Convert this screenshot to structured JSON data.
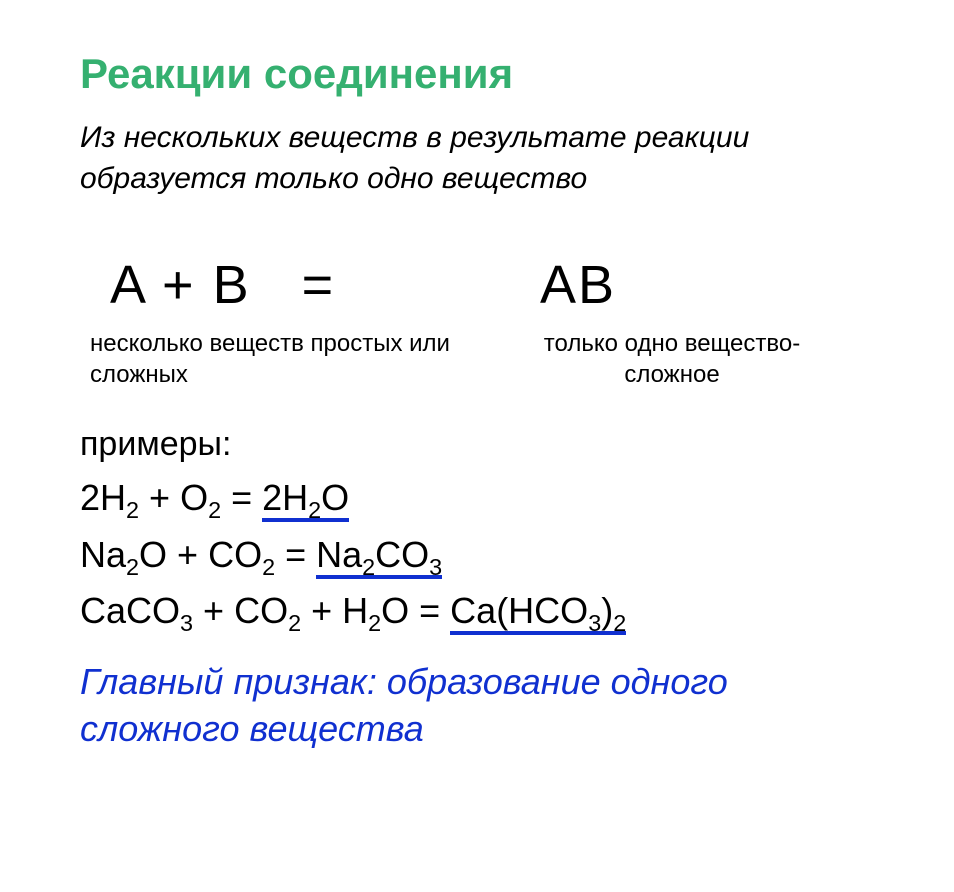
{
  "colors": {
    "title": "#35b070",
    "subtitle": "#000000",
    "body": "#000000",
    "underline": "#1030d0",
    "footer": "#1030d0"
  },
  "title": "Реакции соединения",
  "subtitle": "Из нескольких веществ в результате реакции образуется только одно вещество",
  "equation": {
    "left_expr": "A  +  B",
    "equals": "=",
    "right_expr": "AB",
    "left_caption": "несколько веществ простых или сложных",
    "right_caption": "только одно вещество- сложное"
  },
  "examples_label": "примеры:",
  "reactions": [
    {
      "reactants": "2H₂ + O₂ = ",
      "product": "2H₂O"
    },
    {
      "reactants": "Na₂O + CO₂ = ",
      "product": "Na₂CO₃"
    },
    {
      "reactants": "CaCO₃ + CO₂ + H₂O = ",
      "product": "Ca(HCO₃)₂"
    }
  ],
  "footer": "Главный признак: образование одного сложного вещества"
}
